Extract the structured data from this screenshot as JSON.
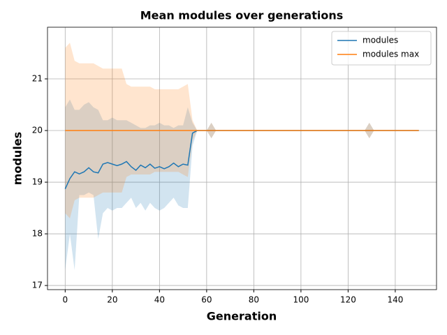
{
  "chart_data": {
    "type": "line",
    "title": "Mean modules over generations",
    "xlabel": "Generation",
    "ylabel": "modules",
    "x": [
      0,
      2,
      4,
      6,
      8,
      10,
      12,
      14,
      16,
      18,
      20,
      22,
      24,
      26,
      28,
      30,
      32,
      34,
      36,
      38,
      40,
      42,
      44,
      46,
      48,
      50,
      52,
      54,
      56,
      60,
      62,
      64,
      127,
      129,
      131,
      150
    ],
    "series": [
      {
        "name": "modules",
        "color": "#1f77b4",
        "values": [
          18.87,
          19.07,
          19.2,
          19.16,
          19.2,
          19.28,
          19.2,
          19.18,
          19.35,
          19.38,
          19.35,
          19.32,
          19.35,
          19.4,
          19.3,
          19.23,
          19.33,
          19.28,
          19.35,
          19.27,
          19.3,
          19.26,
          19.3,
          19.37,
          19.3,
          19.35,
          19.33,
          19.95,
          20,
          20,
          20,
          20,
          20,
          20,
          20,
          20
        ],
        "lower": [
          17.3,
          18.0,
          17.3,
          18.75,
          18.75,
          18.8,
          18.75,
          17.9,
          18.4,
          18.5,
          18.45,
          18.5,
          18.5,
          18.6,
          18.7,
          18.5,
          18.6,
          18.45,
          18.6,
          18.5,
          18.45,
          18.5,
          18.6,
          18.7,
          18.55,
          18.5,
          18.5,
          19.7,
          20,
          20,
          19.85,
          20,
          20,
          19.85,
          20,
          20
        ],
        "upper": [
          20.45,
          20.6,
          20.4,
          20.4,
          20.5,
          20.55,
          20.45,
          20.4,
          20.2,
          20.2,
          20.25,
          20.2,
          20.2,
          20.2,
          20.15,
          20.1,
          20.05,
          20.05,
          20.1,
          20.1,
          20.15,
          20.1,
          20.1,
          20.05,
          20.1,
          20.1,
          20.45,
          20.15,
          20,
          20,
          20.15,
          20,
          20,
          20.15,
          20,
          20
        ]
      },
      {
        "name": "modules max",
        "color": "#ff7f0e",
        "values": [
          20,
          20,
          20,
          20,
          20,
          20,
          20,
          20,
          20,
          20,
          20,
          20,
          20,
          20,
          20,
          20,
          20,
          20,
          20,
          20,
          20,
          20,
          20,
          20,
          20,
          20,
          20,
          20,
          20,
          20,
          20,
          20,
          20,
          20,
          20,
          20
        ],
        "lower": [
          18.4,
          18.3,
          18.65,
          18.7,
          18.7,
          18.7,
          18.7,
          18.75,
          18.8,
          18.8,
          18.8,
          18.8,
          18.8,
          19.1,
          19.15,
          19.15,
          19.15,
          19.15,
          19.15,
          19.2,
          19.2,
          19.2,
          19.2,
          19.2,
          19.2,
          19.15,
          19.1,
          19.8,
          20,
          20,
          19.85,
          20,
          20,
          19.85,
          20,
          20
        ],
        "upper": [
          21.6,
          21.7,
          21.35,
          21.3,
          21.3,
          21.3,
          21.3,
          21.25,
          21.2,
          21.2,
          21.2,
          21.2,
          21.2,
          20.9,
          20.85,
          20.85,
          20.85,
          20.85,
          20.85,
          20.8,
          20.8,
          20.8,
          20.8,
          20.8,
          20.8,
          20.85,
          20.9,
          20.2,
          20,
          20,
          20.15,
          20,
          20,
          20.15,
          20,
          20
        ]
      }
    ],
    "xlim": [
      -7.5,
      157.5
    ],
    "ylim": [
      16.92,
      22.0
    ],
    "xticks": [
      0,
      20,
      40,
      60,
      80,
      100,
      120,
      140
    ],
    "yticks": [
      17,
      18,
      19,
      20,
      21
    ],
    "grid": true,
    "legend": "upper right"
  }
}
